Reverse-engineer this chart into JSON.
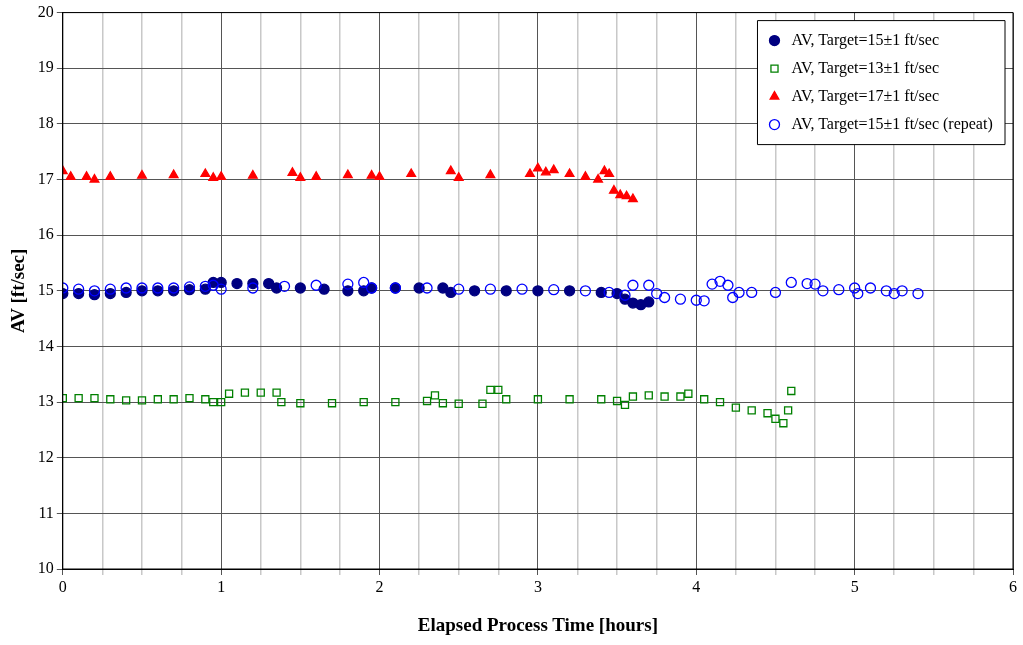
{
  "chart_data": {
    "type": "scatter",
    "xlabel": "Elapsed Process Time [hours]",
    "ylabel": "AV [ft/sec]",
    "xlim": [
      0,
      6
    ],
    "ylim": [
      10,
      20
    ],
    "xticks": [
      0,
      {
        "value": 0.25,
        "label": null
      },
      {
        "value": 0.5,
        "label": null
      },
      {
        "value": 0.75,
        "label": null
      },
      1,
      {
        "value": 1.25,
        "label": null
      },
      {
        "value": 1.5,
        "label": null
      },
      {
        "value": 1.75,
        "label": null
      },
      2,
      {
        "value": 2.25,
        "label": null
      },
      {
        "value": 2.5,
        "label": null
      },
      {
        "value": 2.75,
        "label": null
      },
      3,
      {
        "value": 3.25,
        "label": null
      },
      {
        "value": 3.5,
        "label": null
      },
      {
        "value": 3.75,
        "label": null
      },
      4,
      {
        "value": 4.25,
        "label": null
      },
      {
        "value": 4.5,
        "label": null
      },
      {
        "value": 4.75,
        "label": null
      },
      5,
      {
        "value": 5.25,
        "label": null
      },
      {
        "value": 5.5,
        "label": null
      },
      {
        "value": 5.75,
        "label": null
      },
      6
    ],
    "yticks": [
      10,
      11,
      12,
      13,
      14,
      15,
      16,
      17,
      18,
      19,
      20
    ],
    "grid": true,
    "legend": "top right",
    "series": [
      {
        "name": "AV, Target=15±1 ft/sec",
        "color": "#000080",
        "marker": "circle",
        "x": [
          0,
          0.1,
          0.2,
          0.3,
          0.4,
          0.5,
          0.6,
          0.7,
          0.8,
          0.9,
          0.95,
          1.0,
          1.1,
          1.2,
          1.3,
          1.35,
          1.5,
          1.65,
          1.8,
          1.9,
          1.95,
          2.1,
          2.25,
          2.4,
          2.45,
          2.6,
          2.8,
          3.0,
          3.2,
          3.4,
          3.5,
          3.55,
          3.6,
          3.65,
          3.7
        ],
        "values": [
          14.95,
          14.95,
          14.93,
          14.95,
          14.97,
          15.0,
          15.0,
          15.0,
          15.02,
          15.03,
          15.15,
          15.15,
          15.13,
          15.13,
          15.13,
          15.05,
          15.05,
          15.03,
          15.0,
          15.0,
          15.05,
          15.05,
          15.05,
          15.05,
          14.97,
          15.0,
          15.0,
          15.0,
          15.0,
          14.97,
          14.95,
          14.85,
          14.78,
          14.75,
          14.8
        ]
      },
      {
        "name": "AV, Target=13±1 ft/sec",
        "color": "#008000",
        "marker": "square",
        "x": [
          0,
          0.1,
          0.2,
          0.3,
          0.4,
          0.5,
          0.6,
          0.7,
          0.8,
          0.9,
          0.95,
          1.0,
          1.05,
          1.15,
          1.25,
          1.35,
          1.38,
          1.5,
          1.7,
          1.9,
          2.1,
          2.3,
          2.35,
          2.4,
          2.5,
          2.65,
          2.7,
          2.75,
          2.8,
          3.0,
          3.2,
          3.4,
          3.5,
          3.55,
          3.6,
          3.7,
          3.8,
          3.9,
          3.95,
          4.05,
          4.15,
          4.25,
          4.35,
          4.45,
          4.5,
          4.55,
          4.58,
          4.6
        ],
        "values": [
          13.07,
          13.07,
          13.07,
          13.05,
          13.03,
          13.03,
          13.05,
          13.05,
          13.07,
          13.05,
          13.0,
          13.0,
          13.15,
          13.17,
          13.17,
          13.17,
          13.0,
          12.98,
          12.98,
          13.0,
          13.0,
          13.02,
          13.12,
          12.98,
          12.97,
          12.97,
          13.22,
          13.22,
          13.05,
          13.05,
          13.05,
          13.05,
          13.02,
          12.95,
          13.1,
          13.12,
          13.1,
          13.1,
          13.15,
          13.05,
          13.0,
          12.9,
          12.85,
          12.8,
          12.7,
          12.62,
          12.85,
          13.2
        ]
      },
      {
        "name": "AV, Target=17±1 ft/sec",
        "color": "#ff0000",
        "marker": "triangle",
        "x": [
          0,
          0.05,
          0.15,
          0.2,
          0.3,
          0.5,
          0.7,
          0.9,
          0.95,
          1.0,
          1.2,
          1.45,
          1.5,
          1.6,
          1.8,
          1.95,
          2.0,
          2.2,
          2.45,
          2.5,
          2.7,
          2.95,
          3.0,
          3.05,
          3.1,
          3.2,
          3.3,
          3.38,
          3.42,
          3.45,
          3.48,
          3.52,
          3.56,
          3.6
        ],
        "values": [
          17.15,
          17.05,
          17.05,
          17.0,
          17.05,
          17.07,
          17.08,
          17.1,
          17.03,
          17.05,
          17.07,
          17.12,
          17.03,
          17.05,
          17.08,
          17.07,
          17.05,
          17.1,
          17.15,
          17.03,
          17.08,
          17.1,
          17.2,
          17.13,
          17.17,
          17.1,
          17.05,
          17.0,
          17.15,
          17.1,
          16.8,
          16.72,
          16.7,
          16.65
        ]
      },
      {
        "name": "AV, Target=15±1 ft/sec (repeat)",
        "color": "#0000ff",
        "marker": "circle",
        "x": [
          0,
          0.1,
          0.2,
          0.3,
          0.4,
          0.5,
          0.6,
          0.7,
          0.8,
          0.9,
          0.95,
          1.0,
          1.2,
          1.4,
          1.6,
          1.8,
          1.9,
          1.95,
          2.1,
          2.3,
          2.5,
          2.7,
          2.9,
          3.1,
          3.3,
          3.45,
          3.55,
          3.6,
          3.7,
          3.75,
          3.8,
          3.9,
          4.0,
          4.05,
          4.1,
          4.15,
          4.2,
          4.23,
          4.27,
          4.35,
          4.5,
          4.6,
          4.7,
          4.75,
          4.8,
          4.9,
          5.0,
          5.02,
          5.1,
          5.2,
          5.25,
          5.3,
          5.4
        ],
        "values": [
          15.05,
          15.03,
          15.0,
          15.03,
          15.05,
          15.05,
          15.05,
          15.05,
          15.07,
          15.08,
          15.1,
          15.03,
          15.05,
          15.08,
          15.1,
          15.12,
          15.15,
          15.05,
          15.05,
          15.05,
          15.03,
          15.03,
          15.03,
          15.02,
          15.0,
          14.97,
          14.92,
          15.1,
          15.1,
          14.95,
          14.88,
          14.85,
          14.83,
          14.82,
          15.12,
          15.17,
          15.1,
          14.88,
          14.97,
          14.97,
          14.97,
          15.15,
          15.13,
          15.12,
          15.0,
          15.02,
          15.05,
          14.95,
          15.05,
          15.0,
          14.95,
          15.0,
          14.95
        ]
      }
    ]
  }
}
